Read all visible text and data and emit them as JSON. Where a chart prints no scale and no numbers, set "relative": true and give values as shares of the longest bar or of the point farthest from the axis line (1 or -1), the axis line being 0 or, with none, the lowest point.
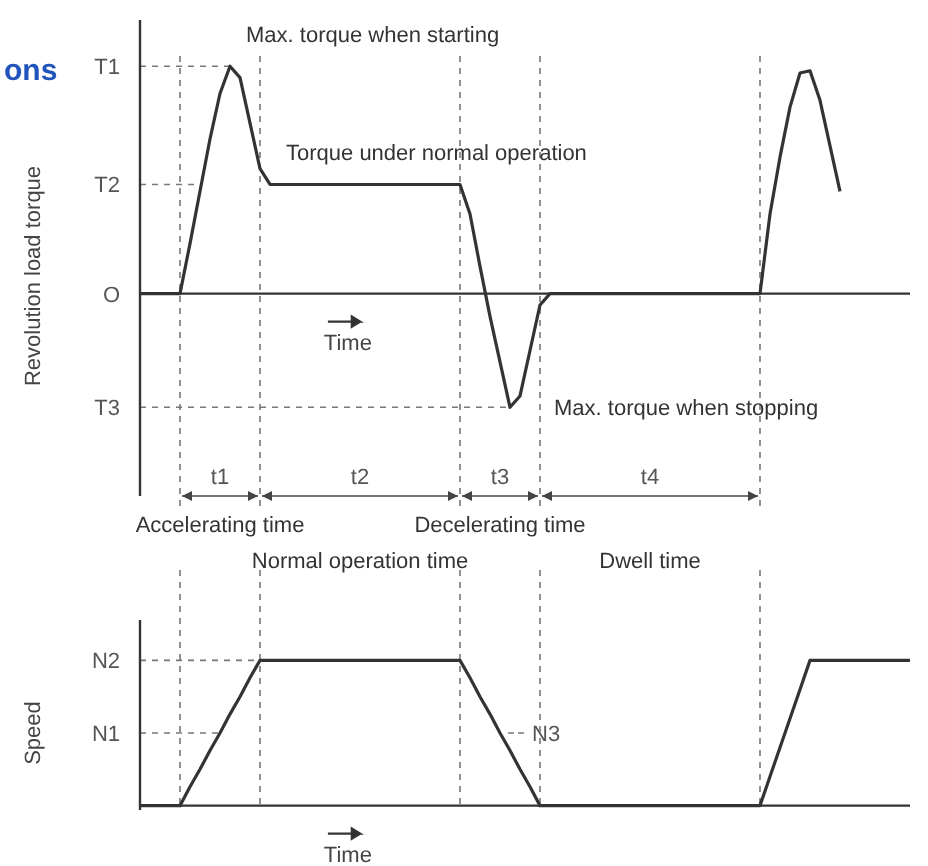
{
  "chart_data": [
    {
      "type": "line",
      "title": "ons",
      "ylabel": "Revolution load torque",
      "xlabel": "Time",
      "relative": true,
      "grid": "x",
      "categories": [
        null,
        null,
        null,
        null,
        null,
        null,
        null,
        null,
        null,
        null,
        null,
        null,
        null,
        null,
        null,
        null,
        null,
        null,
        null,
        null,
        null,
        null,
        null,
        null,
        null,
        null,
        null,
        null,
        null,
        null,
        null,
        null,
        null,
        null,
        null,
        null,
        null,
        null,
        null,
        null,
        null,
        null,
        null,
        null,
        null,
        null,
        null,
        null,
        null,
        null,
        null,
        null,
        null,
        null,
        null,
        null,
        null,
        null,
        null,
        null,
        null,
        null,
        null,
        null,
        null,
        null,
        null,
        null,
        null,
        null,
        null,
        null,
        null,
        null,
        null,
        null,
        null,
        null
      ],
      "series": [
        {
          "color": "#333333",
          "values": [
            0,
            0,
            0,
            0,
            0,
            0.22,
            0.45,
            0.68,
            0.88,
            1,
            0.95,
            0.75,
            0.55,
            0.48,
            0.48,
            0.48,
            0.48,
            0.48,
            0.48,
            0.48,
            0.48,
            0.48,
            0.48,
            0.48,
            0.48,
            0.48,
            0.48,
            0.48,
            0.48,
            0.48,
            0.48,
            0.48,
            0.48,
            0.35,
            0.12,
            -0.1,
            -0.3,
            -0.5,
            -0.45,
            -0.25,
            -0.05,
            0,
            0,
            0,
            0,
            0,
            0,
            0,
            0,
            0,
            0,
            0,
            0,
            0,
            0,
            0,
            0,
            0,
            0,
            0,
            0,
            0,
            0,
            0.35,
            0.6,
            0.82,
            0.97,
            0.98,
            0.85,
            0.65,
            0.45,
            null,
            null,
            null,
            null,
            null,
            null,
            null
          ]
        }
      ],
      "ref_lines": [
        {
          "axis": "y",
          "value": 1,
          "label": "T1"
        },
        {
          "axis": "y",
          "value": 0.48,
          "label": "T2"
        },
        {
          "axis": "y",
          "value": 0,
          "label": "O"
        },
        {
          "axis": "y",
          "value": -0.5,
          "label": "T3"
        }
      ],
      "annotations": [
        "Max. torque when starting",
        "Torque under normal operation",
        "Max. torque when stopping",
        "t1",
        "t2",
        "t3",
        "t4",
        "Accelerating time",
        "Normal operation time",
        "Decelerating time",
        "Dwell time"
      ]
    },
    {
      "type": "line",
      "ylabel": "Speed",
      "xlabel": "Time",
      "relative": true,
      "grid": "x",
      "categories": [
        null,
        null,
        null,
        null,
        null,
        null,
        null,
        null,
        null,
        null,
        null,
        null,
        null,
        null,
        null,
        null,
        null,
        null,
        null,
        null,
        null,
        null,
        null,
        null,
        null,
        null,
        null,
        null,
        null,
        null,
        null,
        null,
        null,
        null,
        null,
        null,
        null,
        null,
        null,
        null,
        null,
        null,
        null,
        null,
        null,
        null,
        null,
        null,
        null,
        null,
        null,
        null,
        null,
        null,
        null,
        null,
        null,
        null,
        null,
        null,
        null,
        null,
        null,
        null,
        null,
        null,
        null,
        null,
        null,
        null,
        null,
        null,
        null,
        null,
        null,
        null,
        null,
        null
      ],
      "series": [
        {
          "color": "#333333",
          "values": [
            0,
            0,
            0,
            0,
            0,
            0.13,
            0.25,
            0.38,
            0.5,
            0.63,
            0.75,
            0.88,
            1,
            1,
            1,
            1,
            1,
            1,
            1,
            1,
            1,
            1,
            1,
            1,
            1,
            1,
            1,
            1,
            1,
            1,
            1,
            1,
            1,
            0.88,
            0.75,
            0.63,
            0.5,
            0.38,
            0.25,
            0.13,
            0,
            0,
            0,
            0,
            0,
            0,
            0,
            0,
            0,
            0,
            0,
            0,
            0,
            0,
            0,
            0,
            0,
            0,
            0,
            0,
            0,
            0,
            0,
            0.2,
            0.4,
            0.6,
            0.8,
            1,
            1,
            1,
            1,
            1,
            1,
            1,
            1,
            1,
            1,
            1
          ]
        }
      ],
      "ref_lines": [
        {
          "axis": "y",
          "value": 1,
          "label": "N2"
        },
        {
          "axis": "y",
          "value": 0.5,
          "label": "N1"
        }
      ],
      "annotations": [
        "N3"
      ]
    }
  ]
}
